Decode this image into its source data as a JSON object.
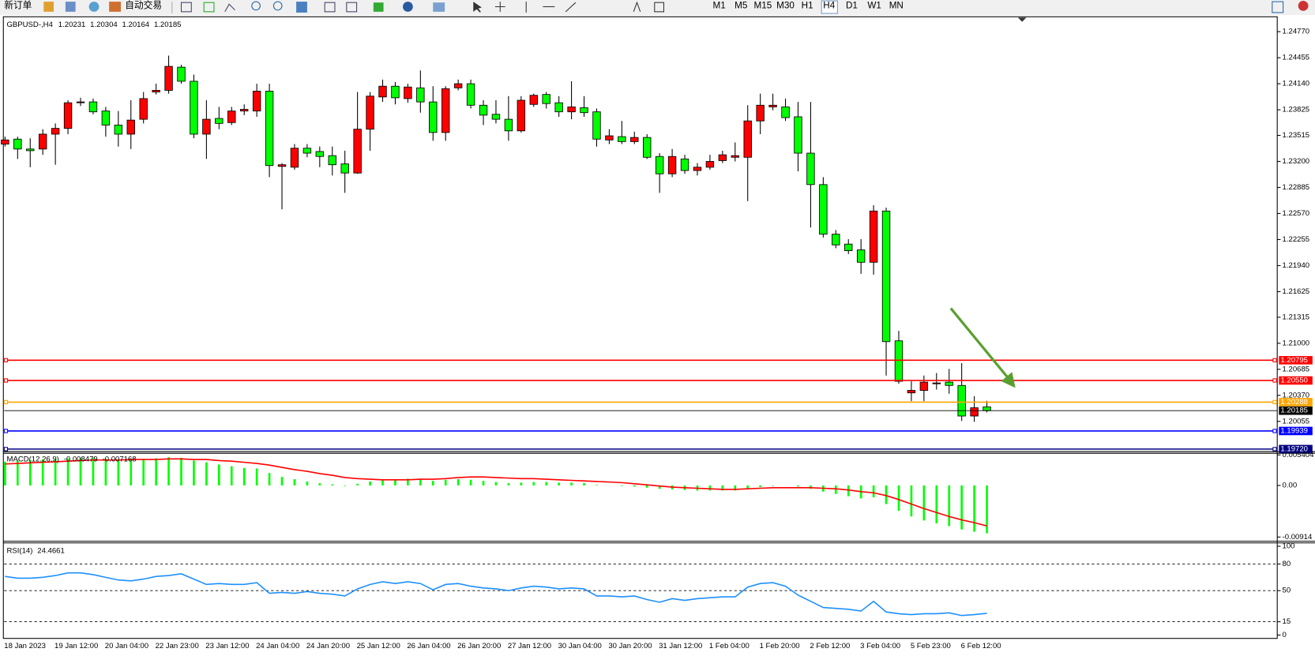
{
  "toolbar": {
    "new_order": "新订单",
    "auto_trading": "自动交易",
    "timeframes": [
      "M1",
      "M5",
      "M15",
      "M30",
      "H1",
      "H4",
      "D1",
      "W1",
      "MN"
    ]
  },
  "chart_data": [
    {
      "type": "candlestick",
      "symbol": "GBPUSD-,H4",
      "categories": [
        "18 Jan 2023",
        null,
        null,
        null,
        "19 Jan 12:00",
        null,
        null,
        null,
        "20 Jan 04:00",
        null,
        null,
        null,
        "22 Jan 23:00",
        null,
        null,
        null,
        "23 Jan 12:00",
        null,
        null,
        null,
        "24 Jan 04:00",
        null,
        null,
        null,
        "24 Jan 20:00",
        null,
        null,
        null,
        "25 Jan 12:00",
        null,
        null,
        null,
        "26 Jan 04:00",
        null,
        null,
        null,
        "26 Jan 20:00",
        null,
        null,
        null,
        "27 Jan 12:00",
        null,
        null,
        null,
        "30 Jan 04:00",
        null,
        null,
        null,
        "30 Jan 20:00",
        null,
        null,
        null,
        "31 Jan 12:00",
        null,
        null,
        null,
        "1 Feb 04:00",
        null,
        null,
        null,
        "1 Feb 20:00",
        null,
        null,
        null,
        "2 Feb 12:00",
        null,
        null,
        null,
        "3 Feb 04:00",
        null,
        null,
        null,
        "5 Feb 23:00",
        null,
        null,
        null,
        "6 Feb 12:00",
        null,
        null
      ],
      "open": [
        1.2341,
        1.2347,
        1.2335,
        1.2335,
        1.2353,
        1.236,
        1.2391,
        1.2392,
        1.2381,
        1.2364,
        1.2353,
        1.2371,
        1.2404,
        1.2406,
        1.2434,
        1.2417,
        1.2353,
        1.2372,
        1.2367,
        1.2381,
        1.2381,
        1.2405,
        1.2314,
        1.2313,
        1.2336,
        1.2332,
        1.2327,
        1.2317,
        1.2306,
        1.2359,
        1.2398,
        1.2411,
        1.2396,
        1.2409,
        1.2392,
        1.2355,
        1.2409,
        1.2414,
        1.2388,
        1.2377,
        1.2371,
        1.2357,
        1.2389,
        1.2401,
        1.2391,
        1.238,
        1.2385,
        1.238,
        1.2346,
        1.235,
        1.2344,
        1.2349,
        1.2326,
        1.2305,
        1.2323,
        1.2309,
        1.2313,
        1.2321,
        1.2325,
        1.2325,
        1.2369,
        1.2386,
        1.2386,
        1.2374,
        1.233,
        1.2292,
        1.2232,
        1.222,
        1.2213,
        1.2198,
        1.226,
        1.2103,
        1.204,
        1.2043,
        1.2051,
        1.2053,
        1.2049,
        1.2012,
        1.20231
      ],
      "high": [
        1.235,
        1.235,
        1.2348,
        1.2359,
        1.2366,
        1.2394,
        1.2397,
        1.2396,
        1.2386,
        1.2381,
        1.2394,
        1.2404,
        1.2414,
        1.2448,
        1.2437,
        1.2425,
        1.2394,
        1.2386,
        1.2386,
        1.2389,
        1.2414,
        1.2414,
        1.2318,
        1.2341,
        1.2341,
        1.2338,
        1.2338,
        1.2333,
        1.2404,
        1.2404,
        1.2419,
        1.2416,
        1.2414,
        1.243,
        1.2411,
        1.2411,
        1.2419,
        1.2419,
        1.2394,
        1.2394,
        1.2399,
        1.2399,
        1.2402,
        1.2404,
        1.2399,
        1.2417,
        1.2399,
        1.2384,
        1.2359,
        1.2369,
        1.2356,
        1.2353,
        1.233,
        1.2335,
        1.2328,
        1.2318,
        1.2328,
        1.2333,
        1.2343,
        1.2388,
        1.2402,
        1.2402,
        1.2396,
        1.2392,
        1.2392,
        1.2301,
        1.2237,
        1.2226,
        1.2226,
        1.2267,
        1.2264,
        1.2115,
        1.2054,
        1.2061,
        1.2064,
        1.2069,
        1.2076,
        1.2036,
        1.20304
      ],
      "low": [
        1.2338,
        1.2323,
        1.2313,
        1.2328,
        1.2316,
        1.2353,
        1.2387,
        1.2377,
        1.235,
        1.2338,
        1.2335,
        1.2366,
        1.2401,
        1.2402,
        1.2414,
        1.2348,
        1.2323,
        1.2359,
        1.2364,
        1.2376,
        1.2374,
        1.2301,
        1.2262,
        1.231,
        1.2325,
        1.2313,
        1.2303,
        1.2282,
        1.2305,
        1.2333,
        1.2392,
        1.2389,
        1.2391,
        1.2379,
        1.2345,
        1.2345,
        1.2406,
        1.2384,
        1.2364,
        1.2366,
        1.2345,
        1.2355,
        1.2386,
        1.2384,
        1.2374,
        1.2371,
        1.2374,
        1.2338,
        1.2341,
        1.2341,
        1.2341,
        1.2323,
        1.2282,
        1.2301,
        1.2305,
        1.2303,
        1.231,
        1.2318,
        1.232,
        1.2272,
        1.2353,
        1.2382,
        1.2369,
        1.2308,
        1.224,
        1.2228,
        1.2215,
        1.2208,
        1.2184,
        1.2183,
        1.2061,
        1.2051,
        1.203,
        1.203,
        1.2044,
        1.2039,
        1.2006,
        1.2005,
        1.20164
      ],
      "close": [
        1.2346,
        1.2335,
        1.2333,
        1.2353,
        1.236,
        1.2391,
        1.2392,
        1.238,
        1.2364,
        1.2353,
        1.237,
        1.2396,
        1.2406,
        1.2435,
        1.2417,
        1.2353,
        1.2371,
        1.2366,
        1.2381,
        1.2383,
        1.2405,
        1.2315,
        1.2316,
        1.2336,
        1.233,
        1.2326,
        1.2316,
        1.2306,
        1.2359,
        1.2399,
        1.2411,
        1.2397,
        1.241,
        1.2392,
        1.2355,
        1.2408,
        1.2414,
        1.2388,
        1.2376,
        1.2371,
        1.2357,
        1.2394,
        1.24,
        1.239,
        1.238,
        1.2386,
        1.2379,
        1.2347,
        1.2351,
        1.2344,
        1.2349,
        1.2325,
        1.2305,
        1.2326,
        1.2309,
        1.2313,
        1.232,
        1.2328,
        1.2327,
        1.2369,
        1.2388,
        1.2388,
        1.2373,
        1.233,
        1.2292,
        1.2232,
        1.2219,
        1.2212,
        1.2198,
        1.226,
        1.2102,
        1.2054,
        1.2043,
        1.2053,
        1.2052,
        1.2049,
        1.2012,
        1.2022,
        1.20185
      ],
      "up_color": "#ff0000",
      "down_color": "#00ff00",
      "ylim": [
        1.197,
        1.2493
      ],
      "yticks": [
        {
          "value": 1.2477,
          "label": "1.24770"
        },
        1.24455,
        {
          "value": 1.2414,
          "label": "1.24140"
        },
        1.23825,
        1.23515,
        {
          "value": 1.232,
          "label": "1.23200"
        },
        1.22885,
        {
          "value": 1.2257,
          "label": "1.22570"
        },
        1.22255,
        {
          "value": 1.2194,
          "label": "1.21940"
        },
        1.21625,
        1.21315,
        {
          "value": 1.21,
          "label": "1.21000"
        },
        1.20685,
        {
          "value": 1.2037,
          "label": "1.20370"
        },
        1.20055
      ],
      "levels": {
        "values": [
          1.20795,
          1.2055,
          1.20288,
          1.19939,
          1.1972
        ],
        "value_labels": [
          "1.20795",
          "1.20550",
          "1.20288",
          "1.19939",
          "1.19720"
        ],
        "colors": [
          "#ff0000",
          "#ff0000",
          "#ffa500",
          "#0000ff",
          "#000080"
        ]
      }
    },
    {
      "type": "macd",
      "name": "MACD(12,26,9)",
      "series": [
        {
          "color": "#00ff00",
          "style": "bar",
          "values": [
            0.0042,
            0.0044,
            0.0045,
            0.0046,
            0.0047,
            0.0048,
            0.0049,
            0.0049,
            0.0047,
            0.0046,
            0.0046,
            0.0047,
            0.0048,
            0.005,
            0.0049,
            0.0044,
            0.0041,
            0.0037,
            0.0034,
            0.0031,
            0.003,
            0.0022,
            0.0015,
            0.0011,
            0.0007,
            0.0004,
            0.0002,
            -0.0001,
            0.0003,
            0.0007,
            0.001,
            0.0011,
            0.0012,
            0.0012,
            0.0008,
            0.001,
            0.0011,
            0.001,
            0.0008,
            0.0006,
            0.0004,
            0.0005,
            0.0006,
            0.0006,
            0.0005,
            0.0005,
            0.0004,
            0.0001,
            0,
            -0.0001,
            -0.0002,
            -0.0004,
            -0.0006,
            -0.0007,
            -0.0008,
            -0.0009,
            -0.0009,
            -0.0009,
            -0.0009,
            -0.0006,
            -0.0003,
            -0.0001,
            0,
            -0.0002,
            -0.0006,
            -0.0011,
            -0.0015,
            -0.0019,
            -0.0023,
            -0.0021,
            -0.0033,
            -0.0045,
            -0.0055,
            -0.0062,
            -0.0067,
            -0.0072,
            -0.0078,
            -0.0082,
            -0.008479
          ]
        },
        {
          "color": "#ff0000",
          "style": "line",
          "values": [
            0.0038,
            0.0039,
            0.004,
            0.0041,
            0.0042,
            0.0043,
            0.0044,
            0.0045,
            0.0045,
            0.0045,
            0.0046,
            0.0046,
            0.0046,
            0.0047,
            0.0047,
            0.0046,
            0.0046,
            0.0044,
            0.0043,
            0.0041,
            0.0039,
            0.0036,
            0.0032,
            0.0028,
            0.0025,
            0.0021,
            0.0018,
            0.0014,
            0.0012,
            0.0011,
            0.001,
            0.001,
            0.001,
            0.0011,
            0.0011,
            0.0012,
            0.0014,
            0.0015,
            0.0015,
            0.0014,
            0.0013,
            0.0012,
            0.0012,
            0.0011,
            0.001,
            0.0009,
            0.0008,
            0.0007,
            0.0006,
            0.0005,
            0.0003,
            0.0001,
            -0.0001,
            -0.0003,
            -0.0004,
            -0.0005,
            -0.0006,
            -0.0007,
            -0.0007,
            -0.0006,
            -0.0005,
            -0.0004,
            -0.0004,
            -0.0004,
            -0.0004,
            -0.0005,
            -0.0006,
            -0.0008,
            -0.0011,
            -0.0013,
            -0.0018,
            -0.0025,
            -0.0033,
            -0.0041,
            -0.0048,
            -0.0055,
            -0.0061,
            -0.0066,
            -0.007168
          ]
        }
      ],
      "ylim": [
        -0.00914,
        0.005404
      ],
      "yticks": [
        0.005404,
        {
          "value": 0,
          "label": "0.00"
        },
        -0.00914
      ]
    },
    {
      "type": "rsi",
      "name": "RSI(14)",
      "color": "#1e90ff",
      "values": [
        66,
        64,
        64,
        65,
        67,
        70,
        70,
        68,
        65,
        62,
        61,
        63,
        66,
        67,
        69,
        63,
        57,
        58,
        57,
        57,
        59,
        47,
        48,
        47,
        49,
        47,
        46,
        44,
        52,
        57,
        60,
        58,
        60,
        58,
        51,
        57,
        58,
        55,
        53,
        52,
        50,
        53,
        55,
        54,
        52,
        53,
        52,
        44,
        44,
        43,
        44,
        40,
        37,
        41,
        39,
        41,
        42,
        43,
        43,
        54,
        58,
        59,
        55,
        45,
        38,
        31,
        30,
        29,
        27,
        38,
        26,
        24,
        23,
        24,
        24,
        25,
        22,
        23,
        24.4661
      ],
      "ylim": [
        0,
        100
      ],
      "yticks": [
        100,
        80,
        50,
        15,
        0
      ],
      "levels": [
        80,
        50,
        15
      ]
    }
  ]
}
